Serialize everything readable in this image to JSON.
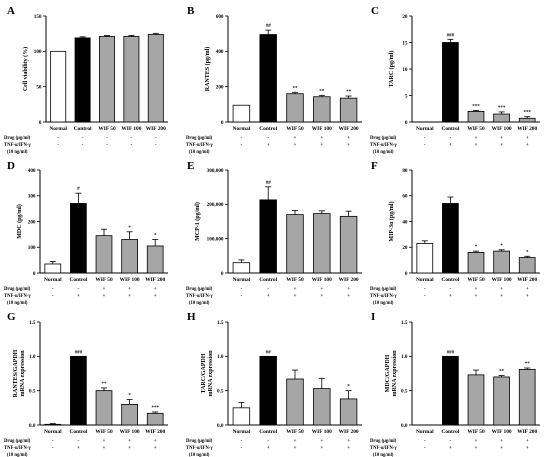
{
  "colors": {
    "normal": "#ffffff",
    "control": "#000000",
    "wif": "#a6a6a6",
    "axis": "#000000"
  },
  "rows": {
    "drug": "Drug (μg/ml)",
    "tnf": "TNF-α/IFN-γ",
    "dose": "(10 ng/ml)"
  },
  "chart_data": [
    {
      "label": "A",
      "type": "bar",
      "ylabel": "Cell viability (%)",
      "ylim": [
        0,
        150
      ],
      "ticks": [
        0,
        50,
        100,
        150
      ],
      "categories": [
        "Normal",
        "Control",
        "WIF 50",
        "WIF 100",
        "WIF 200"
      ],
      "values": [
        100,
        119,
        121,
        121,
        124
      ],
      "errors": [
        0,
        1.5,
        1.5,
        1.5,
        1.5
      ],
      "sig": [
        "",
        "",
        "",
        "",
        ""
      ],
      "drug_row": [
        "-",
        "-",
        "-",
        "-",
        "-"
      ],
      "tnf_row": [
        "-",
        "-",
        "-",
        "-",
        "-"
      ]
    },
    {
      "label": "B",
      "type": "bar",
      "ylabel": "RANTES (pg/ml)",
      "ylim": [
        0,
        600
      ],
      "ticks": [
        0,
        200,
        400,
        600
      ],
      "categories": [
        "Normal",
        "Control",
        "WIF 50",
        "WIF 100",
        "WIF 200"
      ],
      "values": [
        95,
        495,
        160,
        143,
        135
      ],
      "errors": [
        0,
        25,
        8,
        8,
        12
      ],
      "sig": [
        "",
        "##",
        "**",
        "**",
        "**"
      ],
      "drug_row": [
        "-",
        "-",
        "+",
        "+",
        "+"
      ],
      "tnf_row": [
        "-",
        "+",
        "+",
        "+",
        "+"
      ]
    },
    {
      "label": "C",
      "type": "bar",
      "ylabel": "TARC (pg/ml)",
      "ylim": [
        0,
        20
      ],
      "ticks": [
        0,
        5,
        10,
        15,
        20
      ],
      "categories": [
        "Normal",
        "Control",
        "WIF 50",
        "WIF 100",
        "WIF 200"
      ],
      "values": [
        0,
        15,
        2,
        1.5,
        0.7
      ],
      "errors": [
        0,
        0.6,
        0.2,
        0.4,
        0.3
      ],
      "sig": [
        "",
        "###",
        "***",
        "***",
        "***"
      ],
      "drug_row": [
        "-",
        "-",
        "+",
        "+",
        "+"
      ],
      "tnf_row": [
        "-",
        "+",
        "+",
        "+",
        "+"
      ]
    },
    {
      "label": "D",
      "type": "bar",
      "ylabel": "MDC (pg/ml)",
      "ylim": [
        0,
        400
      ],
      "ticks": [
        0,
        100,
        200,
        300,
        400
      ],
      "categories": [
        "Normal",
        "Control",
        "WIF 50",
        "WIF 100",
        "WIF 200"
      ],
      "values": [
        35,
        270,
        145,
        130,
        105
      ],
      "errors": [
        10,
        40,
        25,
        30,
        25
      ],
      "sig": [
        "",
        "#",
        "",
        "*",
        "*"
      ],
      "drug_row": [
        "-",
        "-",
        "+",
        "+",
        "+"
      ],
      "tnf_row": [
        "-",
        "+",
        "+",
        "+",
        "+"
      ]
    },
    {
      "label": "E",
      "type": "bar",
      "ylabel": "MCP-1 (pg/ml)",
      "ylim": [
        0,
        300000
      ],
      "ticks": [
        0,
        100000,
        200000,
        300000
      ],
      "tick_labels": [
        "0",
        "100,000",
        "200,000",
        "300,000"
      ],
      "categories": [
        "Normal",
        "Control",
        "WIF 50",
        "WIF 100",
        "WIF 200"
      ],
      "values": [
        30000,
        213000,
        170000,
        173000,
        165000
      ],
      "errors": [
        8000,
        38000,
        12000,
        8000,
        15000
      ],
      "sig": [
        "",
        "##",
        "",
        "",
        ""
      ],
      "drug_row": [
        "-",
        "-",
        "+",
        "+",
        "+"
      ],
      "tnf_row": [
        "-",
        "+",
        "+",
        "+",
        "+"
      ]
    },
    {
      "label": "F",
      "type": "bar",
      "ylabel": "MIP-3α (pg/ml)",
      "ylim": [
        0,
        80
      ],
      "ticks": [
        0,
        20,
        40,
        60,
        80
      ],
      "categories": [
        "Normal",
        "Control",
        "WIF 50",
        "WIF 100",
        "WIF 200"
      ],
      "values": [
        23,
        54,
        16,
        17,
        12
      ],
      "errors": [
        2,
        5,
        1,
        1,
        1
      ],
      "sig": [
        "",
        "",
        "*",
        "*",
        "*"
      ],
      "drug_row": [
        "-",
        "-",
        "+",
        "+",
        "+"
      ],
      "tnf_row": [
        "-",
        "+",
        "+",
        "+",
        "+"
      ]
    },
    {
      "label": "G",
      "type": "bar",
      "ylabel": "RANTES/GAPDH mRNA expression",
      "ylim": [
        0,
        1.5
      ],
      "ticks": [
        0,
        0.5,
        1.0,
        1.5
      ],
      "tick_labels": [
        "0.0",
        "0.5",
        "1.0",
        "1.5"
      ],
      "categories": [
        "Normal",
        "Control",
        "WIF 50",
        "WIF 100",
        "WIF 200"
      ],
      "values": [
        0.01,
        1.0,
        0.5,
        0.3,
        0.17
      ],
      "errors": [
        0.01,
        0,
        0.04,
        0.07,
        0.02
      ],
      "sig": [
        "",
        "###",
        "**",
        "*",
        "***"
      ],
      "drug_row": [
        "-",
        "-",
        "+",
        "+",
        "+"
      ],
      "tnf_row": [
        "-",
        "+",
        "+",
        "+",
        "+"
      ]
    },
    {
      "label": "H",
      "type": "bar",
      "ylabel": "TARC/GAPDH mRNA expression",
      "ylim": [
        0,
        1.5
      ],
      "ticks": [
        0,
        0.5,
        1.0,
        1.5
      ],
      "tick_labels": [
        "0.0",
        "0.5",
        "1.0",
        "1.5"
      ],
      "categories": [
        "Normal",
        "Control",
        "WIF 50",
        "WIF 100",
        "WIF 200"
      ],
      "values": [
        0.25,
        1.0,
        0.67,
        0.53,
        0.38
      ],
      "errors": [
        0.08,
        0,
        0.13,
        0.15,
        0.12
      ],
      "sig": [
        "",
        "##",
        "",
        "",
        "*"
      ],
      "drug_row": [
        "-",
        "-",
        "+",
        "+",
        "+"
      ],
      "tnf_row": [
        "-",
        "+",
        "+",
        "+",
        "+"
      ]
    },
    {
      "label": "I",
      "type": "bar",
      "ylabel": "MDC/GAPDH mRNA expression",
      "ylim": [
        0,
        1.5
      ],
      "ticks": [
        0,
        0.5,
        1.0,
        1.5
      ],
      "tick_labels": [
        "0.0",
        "0.5",
        "1.0",
        "1.5"
      ],
      "categories": [
        "Normal",
        "Control",
        "WIF 50",
        "WIF 100",
        "WIF 200"
      ],
      "values": [
        0,
        1.0,
        0.73,
        0.7,
        0.81
      ],
      "errors": [
        0,
        0,
        0.07,
        0.02,
        0.02
      ],
      "sig": [
        "",
        "###",
        "",
        "**",
        "**"
      ],
      "drug_row": [
        "-",
        "-",
        "+",
        "+",
        "+"
      ],
      "tnf_row": [
        "-",
        "+",
        "+",
        "+",
        "+"
      ]
    }
  ]
}
